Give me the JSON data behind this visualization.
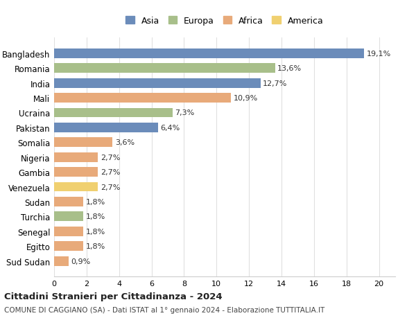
{
  "countries": [
    "Bangladesh",
    "Romania",
    "India",
    "Mali",
    "Ucraina",
    "Pakistan",
    "Somalia",
    "Nigeria",
    "Gambia",
    "Venezuela",
    "Sudan",
    "Turchia",
    "Senegal",
    "Egitto",
    "Sud Sudan"
  ],
  "values": [
    19.1,
    13.6,
    12.7,
    10.9,
    7.3,
    6.4,
    3.6,
    2.7,
    2.7,
    2.7,
    1.8,
    1.8,
    1.8,
    1.8,
    0.9
  ],
  "labels": [
    "19,1%",
    "13,6%",
    "12,7%",
    "10,9%",
    "7,3%",
    "6,4%",
    "3,6%",
    "2,7%",
    "2,7%",
    "2,7%",
    "1,8%",
    "1,8%",
    "1,8%",
    "1,8%",
    "0,9%"
  ],
  "continents": [
    "Asia",
    "Europa",
    "Asia",
    "Africa",
    "Europa",
    "Asia",
    "Africa",
    "Africa",
    "Africa",
    "America",
    "Africa",
    "Europa",
    "Africa",
    "Africa",
    "Africa"
  ],
  "colors": {
    "Asia": "#6b8cba",
    "Europa": "#a8bf8a",
    "Africa": "#e8aa7a",
    "America": "#f0d070"
  },
  "xlim": [
    0,
    21
  ],
  "xticks": [
    0,
    2,
    4,
    6,
    8,
    10,
    12,
    14,
    16,
    18,
    20
  ],
  "title": "Cittadini Stranieri per Cittadinanza - 2024",
  "subtitle": "COMUNE DI CAGGIANO (SA) - Dati ISTAT al 1° gennaio 2024 - Elaborazione TUTTITALIA.IT",
  "background_color": "#ffffff",
  "grid_color": "#e0e0e0",
  "bar_height": 0.65
}
